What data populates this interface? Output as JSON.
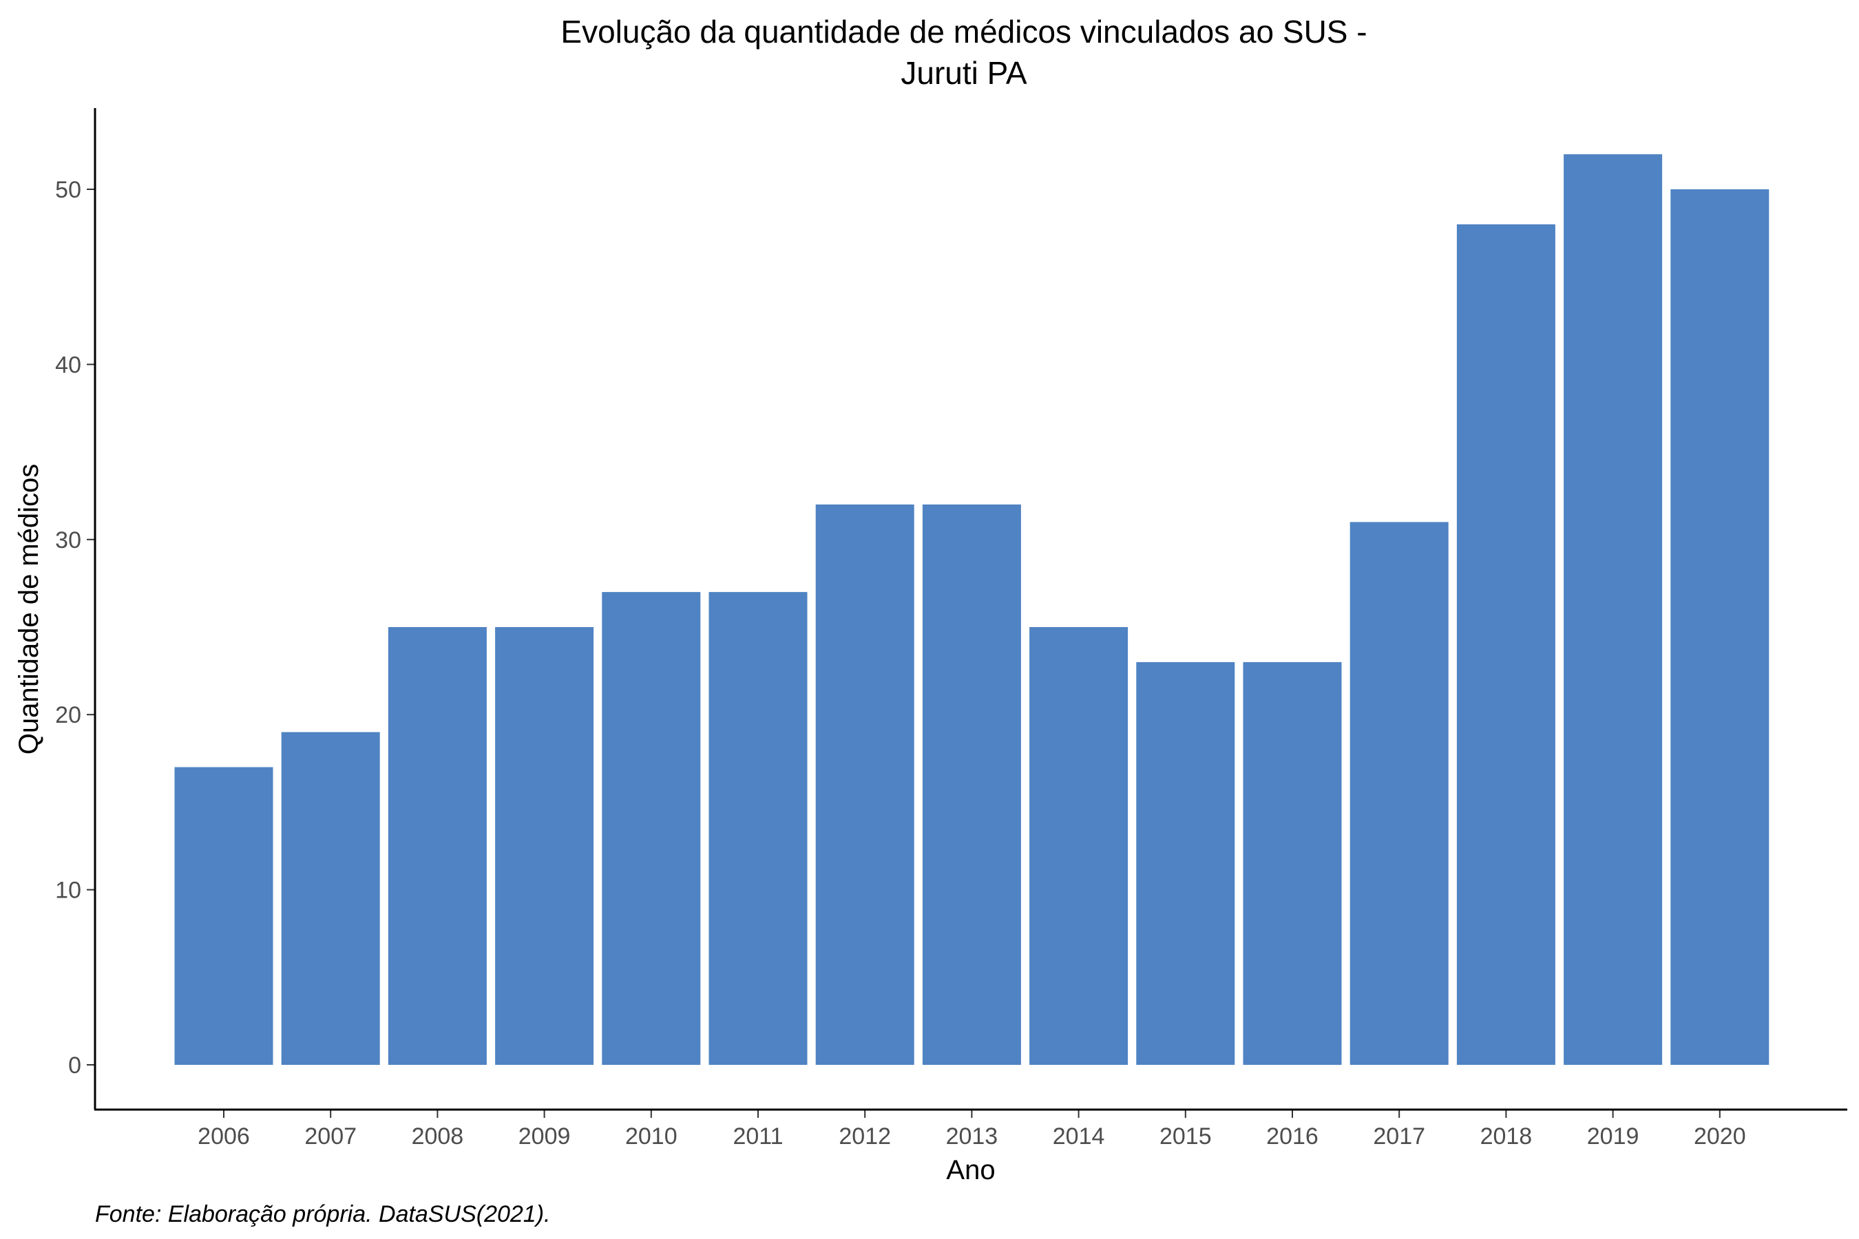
{
  "chart_data": {
    "type": "bar",
    "title_line1": "Evolução da quantidade de médicos vinculados ao SUS -",
    "title_line2": "Juruti PA",
    "xlabel": "Ano",
    "ylabel": "Quantidade de médicos",
    "caption": "Fonte: Elaboração própria. DataSUS(2021).",
    "categories": [
      "2006",
      "2007",
      "2008",
      "2009",
      "2010",
      "2011",
      "2012",
      "2013",
      "2014",
      "2015",
      "2016",
      "2017",
      "2018",
      "2019",
      "2020"
    ],
    "values": [
      17,
      19,
      25,
      25,
      27,
      27,
      32,
      32,
      25,
      23,
      23,
      31,
      48,
      52,
      50
    ],
    "yticks": [
      0,
      10,
      20,
      30,
      40,
      50
    ],
    "ylim": [
      0,
      54.6
    ],
    "grid": false,
    "bar_color": "#4f83c3"
  }
}
